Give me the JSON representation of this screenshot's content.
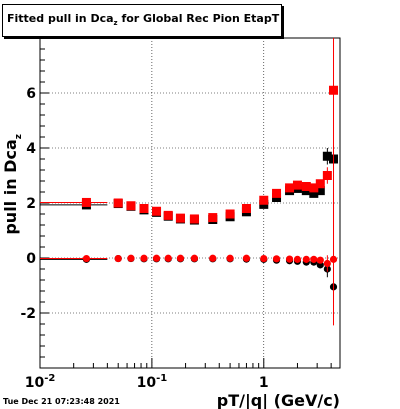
{
  "title": {
    "main": "Fitted pull in Dca",
    "sub": "z",
    "rest": " for Global Rec Pion EtapT"
  },
  "timestamp": "Tue Dec 21 07:23:48 2021",
  "chart_data": {
    "type": "scatter",
    "xlabel": "pT/|q| (GeV/c)",
    "ylabel": {
      "main": "pull in Dca",
      "sub": "z"
    },
    "xscale": "log",
    "xlim": [
      0.01,
      4.8
    ],
    "ylim": [
      -4.0,
      8.0
    ],
    "grid": true,
    "x_ticks": [
      {
        "v": 0.01,
        "label": "10",
        "exp": "-2"
      },
      {
        "v": 0.1,
        "label": "10",
        "exp": "-1"
      },
      {
        "v": 1,
        "label": "1",
        "exp": ""
      }
    ],
    "y_ticks": [
      -2,
      0,
      2,
      4,
      6
    ],
    "series": [
      {
        "marker": "square",
        "role": "sigma",
        "color": "#000000",
        "x": [
          0.026,
          0.05,
          0.065,
          0.085,
          0.11,
          0.14,
          0.18,
          0.24,
          0.35,
          0.5,
          0.7,
          1.0,
          1.3,
          1.7,
          2.0,
          2.4,
          2.8,
          3.2,
          3.7,
          4.2
        ],
        "y": [
          1.93,
          1.98,
          1.88,
          1.75,
          1.66,
          1.52,
          1.42,
          1.38,
          1.4,
          1.5,
          1.68,
          1.95,
          2.2,
          2.45,
          2.53,
          2.45,
          2.35,
          2.45,
          3.7,
          3.6
        ],
        "err": [
          0.03,
          0.03,
          0.03,
          0.03,
          0.03,
          0.03,
          0.03,
          0.03,
          0.03,
          0.03,
          0.03,
          0.04,
          0.05,
          0.06,
          0.06,
          0.07,
          0.1,
          0.12,
          0.3,
          0.5
        ]
      },
      {
        "marker": "square",
        "role": "sigma",
        "color": "#ff0000",
        "x": [
          0.026,
          0.05,
          0.065,
          0.085,
          0.11,
          0.14,
          0.18,
          0.24,
          0.35,
          0.5,
          0.7,
          1.0,
          1.3,
          1.7,
          2.0,
          2.4,
          2.8,
          3.2,
          3.7,
          4.2
        ],
        "y": [
          2.02,
          2.0,
          1.9,
          1.8,
          1.7,
          1.55,
          1.45,
          1.42,
          1.47,
          1.6,
          1.8,
          2.1,
          2.35,
          2.55,
          2.65,
          2.6,
          2.55,
          2.7,
          3.0,
          6.1
        ],
        "err": [
          0.03,
          0.03,
          0.03,
          0.03,
          0.03,
          0.03,
          0.03,
          0.03,
          0.03,
          0.03,
          0.03,
          0.04,
          0.05,
          0.06,
          0.06,
          0.07,
          0.1,
          0.12,
          0.3,
          6.0
        ]
      },
      {
        "marker": "circle",
        "role": "mean",
        "color": "#000000",
        "x": [
          0.026,
          0.05,
          0.065,
          0.085,
          0.11,
          0.14,
          0.18,
          0.24,
          0.35,
          0.5,
          0.7,
          1.0,
          1.3,
          1.7,
          2.0,
          2.4,
          2.8,
          3.2,
          3.7,
          4.2
        ],
        "y": [
          -0.05,
          -0.02,
          -0.02,
          -0.03,
          -0.03,
          -0.03,
          -0.03,
          -0.03,
          -0.03,
          -0.03,
          -0.04,
          -0.05,
          -0.08,
          -0.1,
          -0.12,
          -0.15,
          -0.15,
          -0.25,
          -0.4,
          -1.05
        ],
        "err": [
          0.1,
          0.03,
          0.03,
          0.03,
          0.03,
          0.03,
          0.03,
          0.03,
          0.03,
          0.03,
          0.03,
          0.04,
          0.05,
          0.06,
          0.06,
          0.07,
          0.1,
          0.12,
          0.3,
          0.6
        ]
      },
      {
        "marker": "circle",
        "role": "mean",
        "color": "#ff0000",
        "x": [
          0.026,
          0.05,
          0.065,
          0.085,
          0.11,
          0.14,
          0.18,
          0.24,
          0.35,
          0.5,
          0.7,
          1.0,
          1.3,
          1.7,
          2.0,
          2.4,
          2.8,
          3.2,
          3.7,
          4.2
        ],
        "y": [
          -0.02,
          -0.02,
          -0.01,
          -0.01,
          -0.01,
          -0.01,
          -0.01,
          -0.01,
          -0.01,
          -0.01,
          -0.01,
          -0.02,
          -0.03,
          -0.04,
          -0.05,
          -0.05,
          -0.05,
          -0.08,
          -0.2,
          -0.05
        ],
        "err": [
          0.08,
          0.03,
          0.03,
          0.03,
          0.03,
          0.03,
          0.03,
          0.03,
          0.03,
          0.03,
          0.03,
          0.04,
          0.05,
          0.06,
          0.06,
          0.07,
          0.1,
          0.12,
          0.3,
          2.4
        ]
      }
    ]
  }
}
